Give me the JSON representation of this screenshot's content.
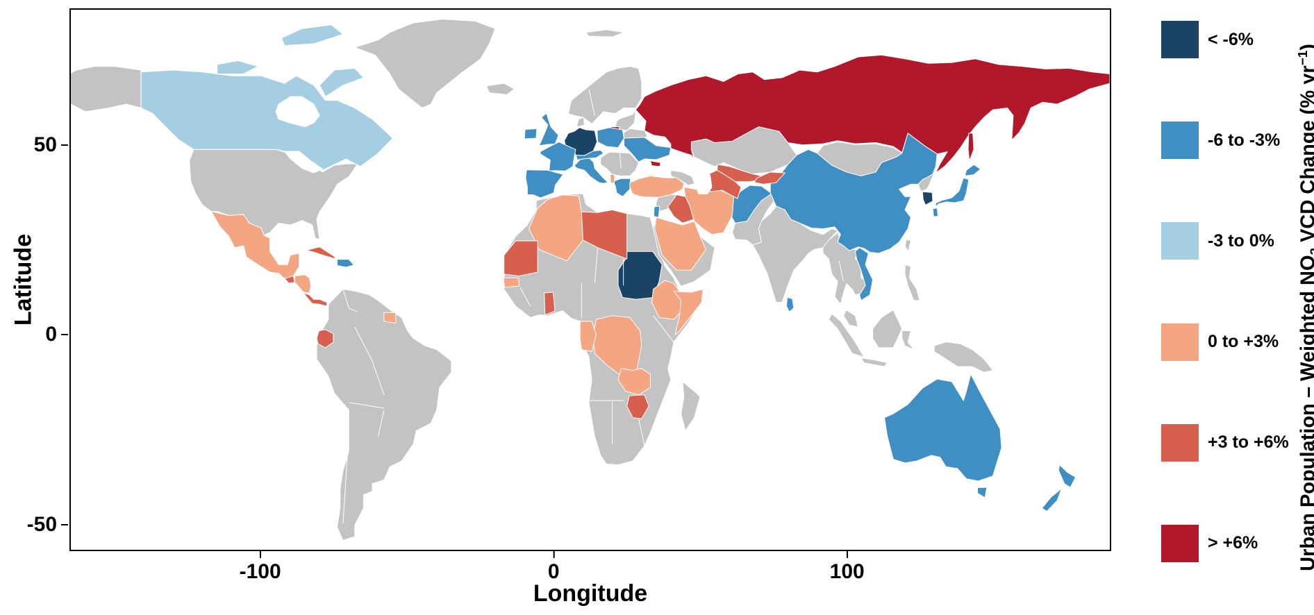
{
  "axes": {
    "xlabel": "Longitude",
    "ylabel": "Latitude",
    "x_ticks": [
      {
        "label": "-100",
        "value": -100
      },
      {
        "label": "0",
        "value": 0
      },
      {
        "label": "100",
        "value": 100
      }
    ],
    "y_ticks": [
      {
        "label": "50",
        "value": 50
      },
      {
        "label": "0",
        "value": 0
      },
      {
        "label": "-50",
        "value": -50
      }
    ]
  },
  "legend": {
    "title": {
      "prefix": "Urban Population – Weighted NO",
      "sub": "2",
      "mid": " VCD Change (% yr",
      "sup": "−1",
      "suffix": ")"
    },
    "items": [
      {
        "label": "< -6%",
        "color": "#1A4365"
      },
      {
        "label": "-6 to -3%",
        "color": "#3F8FC5"
      },
      {
        "label": "-3 to 0%",
        "color": "#A6CEE3"
      },
      {
        "label": "0 to +3%",
        "color": "#F4A582"
      },
      {
        "label": "+3 to +6%",
        "color": "#D6604D"
      },
      {
        "label": "> +6%",
        "color": "#B2182B"
      }
    ],
    "no_data_color": "#C3C3C3",
    "border_color": "#FFFFFF"
  },
  "chart_data": {
    "type": "choropleth",
    "title": "Urban Population - Weighted NO2 VCD Change (% yr-1)",
    "unit": "% per year",
    "categories": [
      "< -6%",
      "-6 to -3%",
      "-3 to 0%",
      "0 to +3%",
      "+3 to +6%",
      "> +6%"
    ],
    "no_data": "gray (no data)",
    "x_axis": "Longitude",
    "y_axis": "Latitude",
    "countries": [
      {
        "name": "Russia",
        "category": "> +6%"
      },
      {
        "name": "Germany",
        "category": "< -6%"
      },
      {
        "name": "Netherlands",
        "category": "< -6%"
      },
      {
        "name": "Belgium",
        "category": "< -6%"
      },
      {
        "name": "Sudan",
        "category": "< -6%"
      },
      {
        "name": "South Korea",
        "category": "< -6%"
      },
      {
        "name": "United Kingdom",
        "category": "-6 to -3%"
      },
      {
        "name": "Ireland",
        "category": "-6 to -3%"
      },
      {
        "name": "France",
        "category": "-6 to -3%"
      },
      {
        "name": "Spain",
        "category": "-6 to -3%"
      },
      {
        "name": "Portugal",
        "category": "-6 to -3%"
      },
      {
        "name": "Italy",
        "category": "-6 to -3%"
      },
      {
        "name": "Switzerland",
        "category": "-6 to -3%"
      },
      {
        "name": "Austria",
        "category": "-6 to -3%"
      },
      {
        "name": "Poland",
        "category": "-6 to -3%"
      },
      {
        "name": "Greece",
        "category": "-6 to -3%"
      },
      {
        "name": "Ukraine",
        "category": "-6 to -3%"
      },
      {
        "name": "Israel",
        "category": "-6 to -3%"
      },
      {
        "name": "Afghanistan",
        "category": "-6 to -3%"
      },
      {
        "name": "China",
        "category": "-6 to -3%"
      },
      {
        "name": "Vietnam",
        "category": "-6 to -3%"
      },
      {
        "name": "Sri Lanka",
        "category": "-6 to -3%"
      },
      {
        "name": "Japan",
        "category": "-6 to -3%"
      },
      {
        "name": "Dominican Republic",
        "category": "-6 to -3%"
      },
      {
        "name": "Australia",
        "category": "-6 to -3%"
      },
      {
        "name": "New Zealand",
        "category": "-6 to -3%"
      },
      {
        "name": "Canada",
        "category": "-3 to 0%"
      },
      {
        "name": "Mexico",
        "category": "0 to +3%"
      },
      {
        "name": "Honduras",
        "category": "0 to +3%"
      },
      {
        "name": "Nicaragua",
        "category": "0 to +3%"
      },
      {
        "name": "Suriname",
        "category": "0 to +3%"
      },
      {
        "name": "Senegal",
        "category": "0 to +3%"
      },
      {
        "name": "Algeria",
        "category": "0 to +3%"
      },
      {
        "name": "Turkey",
        "category": "0 to +3%"
      },
      {
        "name": "Saudi Arabia",
        "category": "0 to +3%"
      },
      {
        "name": "Iran",
        "category": "0 to +3%"
      },
      {
        "name": "Ethiopia",
        "category": "0 to +3%"
      },
      {
        "name": "Somalia",
        "category": "0 to +3%"
      },
      {
        "name": "Democratic Republic of the Congo",
        "category": "0 to +3%"
      },
      {
        "name": "Gabon",
        "category": "0 to +3%"
      },
      {
        "name": "Zambia",
        "category": "0 to +3%"
      },
      {
        "name": "Albania",
        "category": "0 to +3%"
      },
      {
        "name": "Guatemala",
        "category": "+3 to +6%"
      },
      {
        "name": "Panama",
        "category": "+3 to +6%"
      },
      {
        "name": "Cuba",
        "category": "+3 to +6%"
      },
      {
        "name": "Ecuador",
        "category": "+3 to +6%"
      },
      {
        "name": "Mauritania",
        "category": "+3 to +6%"
      },
      {
        "name": "Ghana",
        "category": "+3 to +6%"
      },
      {
        "name": "Libya",
        "category": "+3 to +6%"
      },
      {
        "name": "Iraq",
        "category": "+3 to +6%"
      },
      {
        "name": "Uzbekistan",
        "category": "+3 to +6%"
      },
      {
        "name": "Turkmenistan",
        "category": "+3 to +6%"
      },
      {
        "name": "Kyrgyzstan",
        "category": "+3 to +6%"
      },
      {
        "name": "Tajikistan",
        "category": "+3 to +6%"
      },
      {
        "name": "Zimbabwe",
        "category": "+3 to +6%"
      }
    ]
  }
}
